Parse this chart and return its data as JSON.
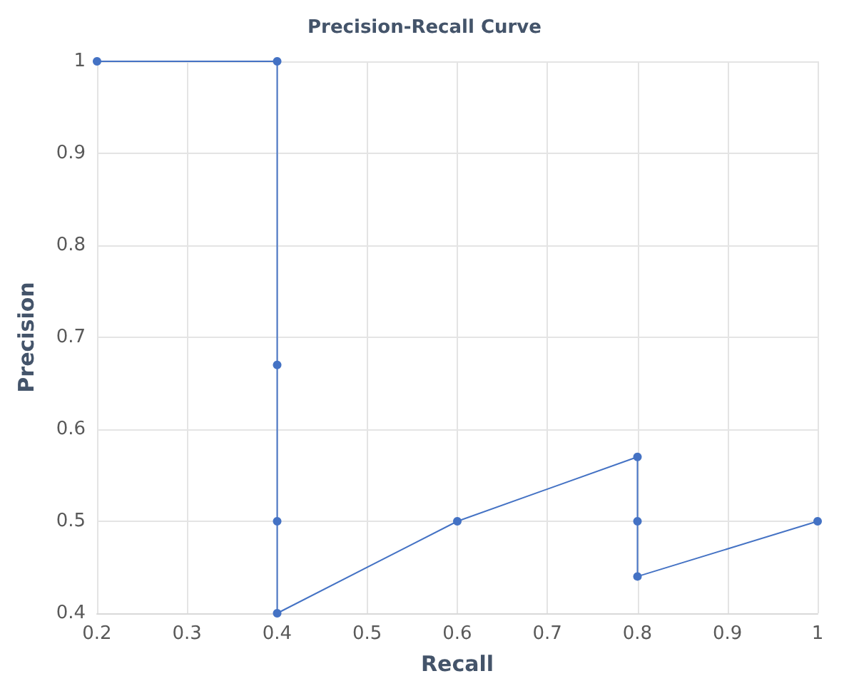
{
  "chart_data": {
    "type": "line",
    "title": "Precision-Recall Curve",
    "xlabel": "Recall",
    "ylabel": "Precision",
    "series": [
      {
        "color": "#4472c4",
        "x": [
          0.2,
          0.4,
          0.4,
          0.4,
          0.4,
          0.6,
          0.8,
          0.8,
          0.8,
          1
        ],
        "values": [
          1,
          1,
          0.67,
          0.5,
          0.4,
          0.5,
          0.57,
          0.5,
          0.44,
          0.5
        ]
      }
    ],
    "xlim": [
      0.2,
      1
    ],
    "ylim": [
      0.4,
      1
    ],
    "xticks": [
      0.2,
      0.3,
      0.4,
      0.5,
      0.6,
      0.7,
      0.8,
      0.9,
      1
    ],
    "yticks": [
      0.4,
      0.5,
      0.6,
      0.7,
      0.8,
      0.9,
      1
    ],
    "grid": true,
    "marker": "circle",
    "line_style": "solid"
  }
}
